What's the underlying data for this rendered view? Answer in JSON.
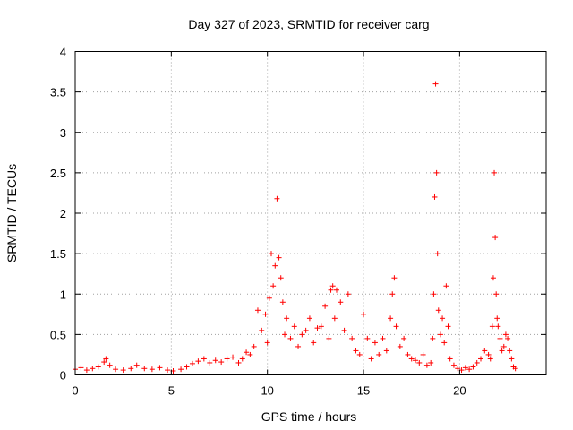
{
  "chart_data": {
    "type": "scatter",
    "title": "Day 327 of 2023, SRMTID for receiver carg",
    "xlabel": "GPS time / hours",
    "ylabel": "SRMTID / TECUs",
    "xlim": [
      0,
      24.5
    ],
    "ylim": [
      0,
      4
    ],
    "x_ticks": [
      0,
      5,
      10,
      15,
      20
    ],
    "x_tick_labels": [
      "0",
      "5",
      "10",
      "15",
      "20"
    ],
    "y_ticks": [
      0,
      0.5,
      1,
      1.5,
      2,
      2.5,
      3,
      3.5,
      4
    ],
    "y_tick_labels": [
      "0",
      "0.5",
      "1",
      "1.5",
      "2",
      "2.5",
      "3",
      "3.5",
      "4"
    ],
    "grid": true,
    "marker": "+",
    "color": "#ff0000",
    "series": [
      {
        "name": "SRMTID",
        "x": [
          0.0,
          0.3,
          0.6,
          0.9,
          1.2,
          1.5,
          1.6,
          1.8,
          2.1,
          2.5,
          2.9,
          3.2,
          3.6,
          4.0,
          4.4,
          4.8,
          5.1,
          5.5,
          5.8,
          6.1,
          6.4,
          6.7,
          7.0,
          7.3,
          7.6,
          7.9,
          8.2,
          8.5,
          8.7,
          8.9,
          9.1,
          9.3,
          9.5,
          9.7,
          9.9,
          10.0,
          10.1,
          10.2,
          10.3,
          10.4,
          10.5,
          10.6,
          10.7,
          10.8,
          10.9,
          11.0,
          11.2,
          11.4,
          11.6,
          11.8,
          12.0,
          12.2,
          12.4,
          12.6,
          12.8,
          13.0,
          13.2,
          13.3,
          13.4,
          13.5,
          13.6,
          13.8,
          14.0,
          14.2,
          14.4,
          14.6,
          14.8,
          15.0,
          15.2,
          15.4,
          15.6,
          15.8,
          16.0,
          16.2,
          16.4,
          16.5,
          16.6,
          16.7,
          16.9,
          17.1,
          17.3,
          17.5,
          17.7,
          17.9,
          18.1,
          18.3,
          18.5,
          18.6,
          18.65,
          18.7,
          18.75,
          18.8,
          18.85,
          18.9,
          19.0,
          19.1,
          19.2,
          19.3,
          19.4,
          19.5,
          19.7,
          19.9,
          20.1,
          20.3,
          20.5,
          20.7,
          20.9,
          21.1,
          21.3,
          21.5,
          21.6,
          21.7,
          21.75,
          21.8,
          21.85,
          21.9,
          21.95,
          22.0,
          22.1,
          22.2,
          22.3,
          22.4,
          22.5,
          22.6,
          22.7,
          22.8,
          22.9
        ],
        "values": [
          0.07,
          0.09,
          0.06,
          0.08,
          0.1,
          0.16,
          0.2,
          0.12,
          0.07,
          0.06,
          0.08,
          0.12,
          0.08,
          0.07,
          0.09,
          0.06,
          0.05,
          0.07,
          0.1,
          0.14,
          0.17,
          0.2,
          0.15,
          0.18,
          0.16,
          0.2,
          0.22,
          0.15,
          0.2,
          0.28,
          0.25,
          0.35,
          0.8,
          0.55,
          0.75,
          0.4,
          0.95,
          1.5,
          1.1,
          1.35,
          2.18,
          1.45,
          1.2,
          0.9,
          0.5,
          0.7,
          0.45,
          0.6,
          0.35,
          0.5,
          0.55,
          0.7,
          0.4,
          0.58,
          0.6,
          0.85,
          0.45,
          1.05,
          1.1,
          0.7,
          1.05,
          0.9,
          0.55,
          1.0,
          0.45,
          0.3,
          0.25,
          0.75,
          0.45,
          0.2,
          0.4,
          0.25,
          0.45,
          0.3,
          0.7,
          1.0,
          1.2,
          0.6,
          0.35,
          0.45,
          0.25,
          0.2,
          0.18,
          0.15,
          0.25,
          0.12,
          0.15,
          0.45,
          1.0,
          2.2,
          3.6,
          2.5,
          1.5,
          0.8,
          0.5,
          0.7,
          0.4,
          1.1,
          0.6,
          0.2,
          0.12,
          0.08,
          0.06,
          0.09,
          0.07,
          0.1,
          0.15,
          0.2,
          0.3,
          0.25,
          0.2,
          0.6,
          1.2,
          2.5,
          1.7,
          1.0,
          0.7,
          0.6,
          0.45,
          0.3,
          0.35,
          0.5,
          0.45,
          0.3,
          0.2,
          0.1,
          0.08
        ]
      }
    ]
  }
}
